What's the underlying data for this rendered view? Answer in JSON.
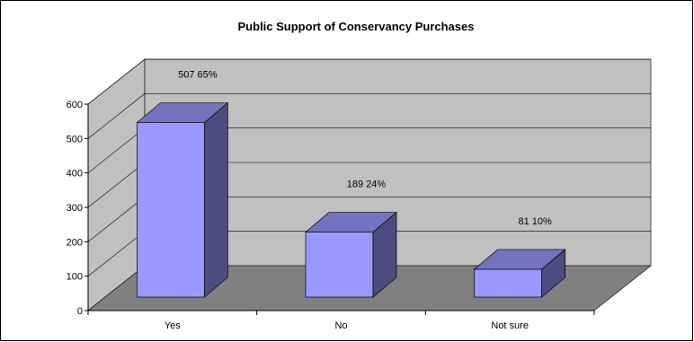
{
  "chart_data": {
    "type": "bar",
    "title": "Public Support of Conservancy Purchases",
    "categories": [
      "Yes",
      "No",
      "Not sure"
    ],
    "values": [
      507,
      189,
      81
    ],
    "data_labels": [
      "507   65%",
      "189   24%",
      "81   10%"
    ],
    "ylim": [
      0,
      600
    ],
    "yticks": [
      "0",
      "100",
      "200",
      "300",
      "400",
      "500",
      "600"
    ],
    "xlabel": "",
    "ylabel": "",
    "grid": true,
    "legend": "none",
    "style": "3d-column",
    "colors": {
      "bar_front": "#9999FF",
      "bar_side": "#4C4C7F",
      "bar_top": "#7373BF",
      "back_wall": "#C0C0C0",
      "side_wall": "#C0C0C0",
      "floor": "#808080"
    }
  }
}
